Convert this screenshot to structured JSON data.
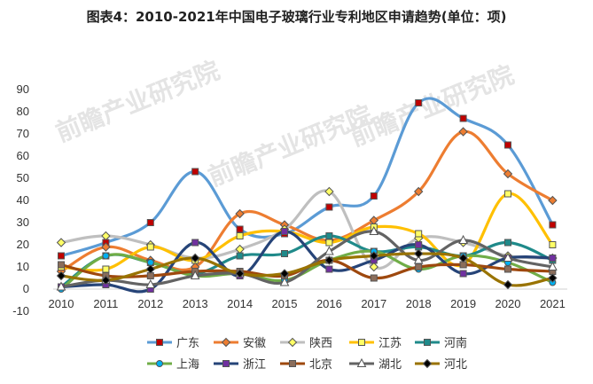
{
  "chart_data": {
    "type": "line",
    "title": "图表4：2010-2021年中国电子玻璃行业专利地区申请趋势(单位：项)",
    "watermark": "前瞻产业研究院",
    "x": [
      "2010",
      "2011",
      "2012",
      "2013",
      "2014",
      "2015",
      "2016",
      "2017",
      "2018",
      "2019",
      "2020",
      "2021"
    ],
    "ylim": [
      -10,
      90
    ],
    "yticks": [
      "-10",
      "0",
      "10",
      "20",
      "30",
      "40",
      "50",
      "60",
      "70",
      "80",
      "90"
    ],
    "grid": false,
    "smooth": true,
    "legend_position": "bottom",
    "series": [
      {
        "name": "广东",
        "color": "#5b9bd5",
        "marker": "square",
        "marker_color": "#c00000",
        "values": [
          15,
          21,
          30,
          53,
          27,
          25,
          37,
          42,
          84,
          77,
          65,
          29
        ]
      },
      {
        "name": "安徽",
        "color": "#ed7d31",
        "marker": "diamond",
        "marker_color": "#ed7d31",
        "values": [
          8,
          19,
          13,
          10,
          34,
          29,
          22,
          31,
          44,
          71,
          52,
          40
        ]
      },
      {
        "name": "陕西",
        "color": "#bfbfbf",
        "marker": "diamond",
        "marker_color": "#ffff66",
        "values": [
          21,
          24,
          20,
          14,
          18,
          27,
          44,
          10,
          23,
          21,
          15,
          14
        ]
      },
      {
        "name": "江苏",
        "color": "#ffc000",
        "marker": "square",
        "marker_color": "#ffff66",
        "values": [
          10,
          9,
          19,
          13,
          24,
          26,
          21,
          28,
          25,
          11,
          43,
          20
        ]
      },
      {
        "name": "河南",
        "color": "#1f8a8a",
        "marker": "square",
        "marker_color": "#1f8a8a",
        "values": [
          1,
          15,
          12,
          7,
          15,
          16,
          24,
          17,
          19,
          15,
          21,
          13
        ]
      },
      {
        "name": "上海",
        "color": "#70ad47",
        "marker": "circle",
        "marker_color": "#00b0f0",
        "values": [
          0,
          15,
          12,
          6,
          7,
          4,
          13,
          17,
          9,
          15,
          12,
          3
        ]
      },
      {
        "name": "浙江",
        "color": "#264478",
        "marker": "square",
        "marker_color": "#7030a0",
        "values": [
          1,
          2,
          0,
          21,
          6,
          26,
          9,
          13,
          20,
          7,
          14,
          14
        ]
      },
      {
        "name": "北京",
        "color": "#9e480e",
        "marker": "square",
        "marker_color": "#8a6d5b",
        "values": [
          11,
          6,
          6,
          8,
          8,
          6,
          13,
          5,
          10,
          11,
          9,
          8
        ]
      },
      {
        "name": "湖北",
        "color": "#636363",
        "marker": "triangle",
        "marker_color": "#ffffff",
        "values": [
          1,
          4,
          2,
          6,
          7,
          3,
          17,
          26,
          13,
          22,
          14,
          10
        ]
      },
      {
        "name": "河北",
        "color": "#997300",
        "marker": "diamond",
        "marker_color": "#000000",
        "values": [
          6,
          4,
          9,
          14,
          7,
          7,
          13,
          15,
          16,
          14,
          2,
          5
        ]
      }
    ]
  }
}
